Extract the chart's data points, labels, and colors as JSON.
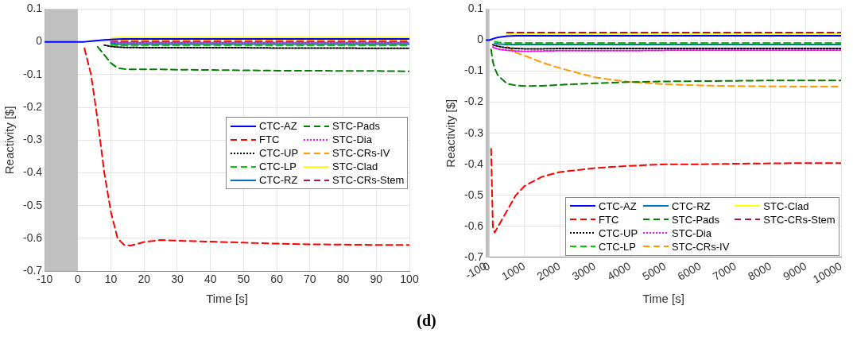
{
  "chart_data": [
    {
      "type": "line",
      "xlabel": "Time [s]",
      "ylabel": "Reactivity [$]",
      "grid": true,
      "legend": "right",
      "marker": "none",
      "xlim": [
        -10,
        100
      ],
      "xticks": [
        -10,
        0,
        10,
        20,
        30,
        40,
        50,
        60,
        70,
        80,
        90,
        100
      ],
      "ylim": [
        -0.7,
        0.1
      ],
      "yticks": [
        -0.7,
        -0.6,
        -0.5,
        -0.4,
        -0.3,
        -0.2,
        -0.1,
        0,
        0.1
      ],
      "bands": [
        {
          "axis": "x",
          "from": -10,
          "to": 0,
          "color": "#c0c0c0"
        }
      ],
      "annotations": [
        "(d)"
      ],
      "x": [
        -10,
        0,
        2,
        4,
        6,
        8,
        10,
        12,
        14,
        16,
        20,
        25,
        30,
        40,
        50,
        60,
        70,
        80,
        90,
        100
      ],
      "series": [
        {
          "name": "CTC-AZ",
          "color": "#0000ff",
          "line_style": "solid",
          "values": [
            0,
            0,
            0,
            0.002,
            0.004,
            0.006,
            0.007,
            0.008,
            0.009,
            0.009,
            0.009,
            0.009,
            0.009,
            0.009,
            0.009,
            0.009,
            0.009,
            0.009,
            0.009,
            0.009
          ]
        },
        {
          "name": "FTC",
          "color": "#ff0000",
          "line_style": "dashed",
          "values": [
            null,
            null,
            -0.02,
            -0.1,
            -0.24,
            -0.4,
            -0.52,
            -0.6,
            -0.62,
            -0.622,
            -0.611,
            -0.605,
            -0.607,
            -0.61,
            -0.613,
            -0.616,
            -0.618,
            -0.619,
            -0.62,
            -0.62
          ]
        },
        {
          "name": "CTC-UP",
          "color": "#000000",
          "line_style": "dotted",
          "values": [
            null,
            null,
            null,
            null,
            null,
            -0.01,
            -0.014,
            -0.016,
            -0.017,
            -0.017,
            -0.018,
            -0.018,
            -0.018,
            -0.018,
            -0.018,
            -0.019,
            -0.019,
            -0.019,
            -0.02,
            -0.02
          ]
        },
        {
          "name": "CTC-LP",
          "color": "#00cc00",
          "line_style": "dashed",
          "values": [
            null,
            null,
            null,
            null,
            null,
            null,
            -0.008,
            -0.011,
            -0.011,
            -0.011,
            -0.011,
            -0.011,
            -0.011,
            -0.011,
            -0.011,
            -0.011,
            -0.011,
            -0.011,
            -0.011,
            -0.011
          ]
        },
        {
          "name": "CTC-RZ",
          "color": "#0072bd",
          "line_style": "solid",
          "values": [
            null,
            null,
            null,
            null,
            null,
            null,
            -0.005,
            -0.007,
            -0.007,
            -0.007,
            -0.007,
            -0.007,
            -0.007,
            -0.007,
            -0.007,
            -0.007,
            -0.007,
            -0.007,
            -0.007,
            -0.007
          ]
        },
        {
          "name": "STC-Pads",
          "color": "#007f00",
          "line_style": "dashed",
          "values": [
            null,
            null,
            null,
            null,
            -0.015,
            -0.04,
            -0.065,
            -0.08,
            -0.083,
            -0.084,
            -0.084,
            -0.084,
            -0.085,
            -0.086,
            -0.087,
            -0.088,
            -0.088,
            -0.089,
            -0.089,
            -0.09
          ]
        },
        {
          "name": "STC-Dia",
          "color": "#ff00ff",
          "line_style": "dotted",
          "values": [
            null,
            null,
            null,
            null,
            null,
            null,
            -0.002,
            -0.003,
            -0.003,
            -0.003,
            -0.003,
            -0.003,
            -0.003,
            -0.003,
            -0.003,
            -0.003,
            -0.003,
            -0.003,
            -0.003,
            -0.003
          ]
        },
        {
          "name": "STC-CRs-IV",
          "color": "#ff9900",
          "line_style": "dashed",
          "values": [
            null,
            null,
            null,
            null,
            null,
            null,
            0.004,
            0.005,
            0.005,
            0.005,
            0.005,
            0.005,
            0.005,
            0.005,
            0.005,
            0.005,
            0.005,
            0.005,
            0.005,
            0.005
          ]
        },
        {
          "name": "STC-Clad",
          "color": "#ffff00",
          "line_style": "solid",
          "values": [
            null,
            null,
            null,
            null,
            null,
            null,
            0.011,
            0.013,
            0.013,
            0.013,
            0.013,
            0.013,
            0.013,
            0.013,
            0.013,
            0.013,
            0.013,
            0.013,
            0.013,
            0.013
          ]
        },
        {
          "name": "STC-CRs-Stem",
          "color": "#a2145d",
          "line_style": "dashed",
          "values": [
            null,
            null,
            null,
            null,
            null,
            null,
            0.001,
            0.001,
            0.001,
            0.001,
            0.001,
            0.001,
            0.001,
            0.001,
            0.001,
            0.001,
            0.001,
            0.001,
            0.001,
            0.001
          ]
        }
      ]
    },
    {
      "type": "line",
      "xlabel": "Time [s]",
      "ylabel": "Reactivity [$]",
      "grid": true,
      "legend": "bottom right",
      "marker": "none",
      "xlim": [
        -100,
        10000
      ],
      "xticks": [
        -100,
        0,
        1000,
        2000,
        3000,
        4000,
        5000,
        6000,
        7000,
        8000,
        9000,
        10000
      ],
      "ylim": [
        -0.7,
        0.1
      ],
      "yticks": [
        -0.7,
        -0.6,
        -0.5,
        -0.4,
        -0.3,
        -0.2,
        -0.1,
        0,
        0.1
      ],
      "bands": [
        {
          "axis": "x",
          "from": -100,
          "to": 0,
          "color": "#c0c0c0"
        }
      ],
      "x": [
        -100,
        0,
        50,
        100,
        150,
        250,
        500,
        750,
        1000,
        1500,
        2000,
        3000,
        4000,
        5000,
        6000,
        7000,
        8000,
        9000,
        10000
      ],
      "series": [
        {
          "name": "CTC-AZ",
          "color": "#0000ff",
          "line_style": "solid",
          "values": [
            0,
            0,
            0.002,
            0.004,
            0.006,
            0.009,
            0.013,
            0.014,
            0.014,
            0.014,
            0.014,
            0.014,
            0.014,
            0.014,
            0.014,
            0.014,
            0.014,
            0.014,
            0.014
          ]
        },
        {
          "name": "FTC",
          "color": "#ff0000",
          "line_style": "dashed",
          "values": [
            null,
            null,
            -0.35,
            -0.6,
            -0.62,
            -0.6,
            -0.55,
            -0.5,
            -0.47,
            -0.44,
            -0.425,
            -0.412,
            -0.405,
            -0.4,
            -0.4,
            -0.398,
            -0.397,
            -0.396,
            -0.396
          ]
        },
        {
          "name": "CTC-UP",
          "color": "#000000",
          "line_style": "dotted",
          "values": [
            null,
            null,
            null,
            -0.015,
            -0.017,
            -0.02,
            -0.025,
            -0.027,
            -0.028,
            -0.028,
            -0.027,
            -0.027,
            -0.027,
            -0.027,
            -0.027,
            -0.027,
            -0.027,
            -0.027,
            -0.027
          ]
        },
        {
          "name": "CTC-LP",
          "color": "#00cc00",
          "line_style": "dashed",
          "values": [
            null,
            null,
            null,
            null,
            -0.005,
            -0.007,
            -0.009,
            -0.009,
            -0.009,
            -0.009,
            -0.009,
            -0.009,
            -0.009,
            -0.009,
            -0.009,
            -0.009,
            -0.009,
            -0.009,
            -0.009
          ]
        },
        {
          "name": "CTC-RZ",
          "color": "#0072bd",
          "line_style": "solid",
          "values": [
            null,
            null,
            null,
            null,
            -0.01,
            -0.012,
            -0.014,
            -0.014,
            -0.014,
            -0.014,
            -0.014,
            -0.014,
            -0.014,
            -0.014,
            -0.014,
            -0.014,
            -0.014,
            -0.014,
            -0.014
          ]
        },
        {
          "name": "STC-Pads",
          "color": "#007f00",
          "line_style": "dashed",
          "values": [
            null,
            null,
            -0.03,
            -0.07,
            -0.09,
            -0.115,
            -0.14,
            -0.146,
            -0.148,
            -0.147,
            -0.144,
            -0.139,
            -0.135,
            -0.133,
            -0.132,
            -0.131,
            -0.13,
            -0.13,
            -0.13
          ]
        },
        {
          "name": "STC-Dia",
          "color": "#ff00ff",
          "line_style": "dotted",
          "values": [
            null,
            null,
            null,
            -0.022,
            -0.025,
            -0.029,
            -0.033,
            -0.035,
            -0.036,
            -0.035,
            -0.034,
            -0.034,
            -0.034,
            -0.033,
            -0.033,
            -0.033,
            -0.033,
            -0.033,
            -0.033
          ]
        },
        {
          "name": "STC-CRs-IV",
          "color": "#ff9900",
          "line_style": "dashed",
          "values": [
            null,
            null,
            null,
            null,
            null,
            null,
            -0.02,
            -0.04,
            -0.05,
            -0.072,
            -0.09,
            -0.12,
            -0.135,
            -0.142,
            -0.146,
            -0.148,
            -0.149,
            -0.15,
            -0.15
          ]
        },
        {
          "name": "STC-Clad",
          "color": "#ffff00",
          "line_style": "solid",
          "values": [
            null,
            null,
            null,
            null,
            null,
            null,
            0.019,
            0.019,
            0.019,
            0.019,
            0.019,
            0.019,
            0.019,
            0.019,
            0.019,
            0.019,
            0.019,
            0.019,
            0.019
          ]
        },
        {
          "name": "STC-CRs-Stem",
          "color": "#a2145d",
          "line_style": "dashed",
          "values": [
            null,
            null,
            null,
            null,
            null,
            null,
            0.024,
            0.024,
            0.024,
            0.024,
            0.024,
            0.024,
            0.024,
            0.024,
            0.024,
            0.024,
            0.024,
            0.024,
            0.024
          ]
        }
      ]
    }
  ]
}
